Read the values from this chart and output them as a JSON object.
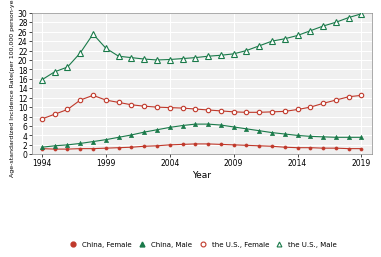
{
  "years": [
    1994,
    1995,
    1996,
    1997,
    1998,
    1999,
    2000,
    2001,
    2002,
    2003,
    2004,
    2005,
    2006,
    2007,
    2008,
    2009,
    2010,
    2011,
    2012,
    2013,
    2014,
    2015,
    2016,
    2017,
    2018,
    2019
  ],
  "china_female": [
    1.2,
    1.1,
    1.1,
    1.2,
    1.2,
    1.3,
    1.4,
    1.5,
    1.7,
    1.8,
    2.0,
    2.1,
    2.2,
    2.2,
    2.1,
    2.0,
    1.9,
    1.8,
    1.7,
    1.5,
    1.4,
    1.4,
    1.3,
    1.3,
    1.2,
    1.2
  ],
  "china_male": [
    1.5,
    1.8,
    2.0,
    2.3,
    2.7,
    3.1,
    3.6,
    4.1,
    4.7,
    5.2,
    5.7,
    6.1,
    6.4,
    6.4,
    6.2,
    5.8,
    5.4,
    5.0,
    4.6,
    4.3,
    4.0,
    3.8,
    3.7,
    3.6,
    3.6,
    3.6
  ],
  "us_female": [
    7.5,
    8.5,
    9.5,
    11.5,
    12.5,
    11.5,
    11.0,
    10.5,
    10.2,
    10.0,
    9.9,
    9.8,
    9.6,
    9.4,
    9.2,
    9.0,
    8.9,
    8.9,
    9.0,
    9.1,
    9.5,
    10.0,
    10.8,
    11.5,
    12.2,
    12.5
  ],
  "us_male": [
    15.8,
    17.5,
    18.5,
    21.5,
    25.5,
    22.5,
    20.8,
    20.5,
    20.2,
    20.0,
    20.1,
    20.3,
    20.5,
    20.8,
    21.0,
    21.3,
    22.0,
    23.0,
    24.0,
    24.5,
    25.2,
    26.2,
    27.2,
    28.0,
    29.0,
    29.8
  ],
  "china_female_color": "#c0392b",
  "china_male_color": "#1a7a4a",
  "us_female_color": "#c0392b",
  "us_male_color": "#1a7a4a",
  "ylabel": "Age-standardized Incidence Rate(per 100,000 person-year)",
  "xlabel": "Year",
  "ylim": [
    0,
    30
  ],
  "yticks": [
    0,
    2,
    4,
    6,
    8,
    10,
    12,
    14,
    16,
    18,
    20,
    22,
    24,
    26,
    28,
    30
  ],
  "xticks": [
    1994,
    1999,
    2004,
    2009,
    2014,
    2019
  ],
  "background_color": "#f0f0f0",
  "grid_color": "#ffffff"
}
